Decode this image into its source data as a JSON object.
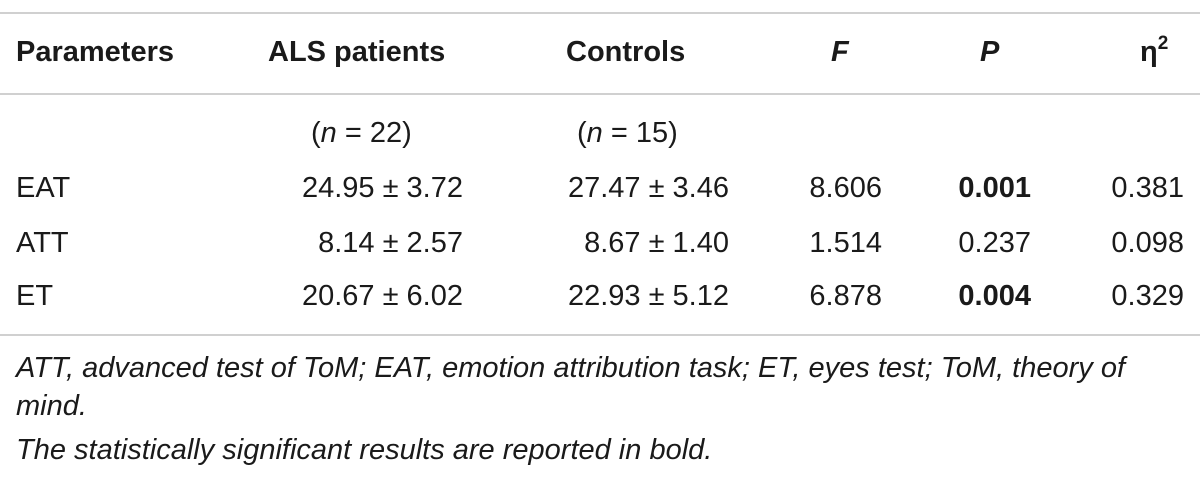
{
  "table": {
    "headers": {
      "parameters": "Parameters",
      "als": "ALS patients",
      "controls": "Controls",
      "f": "F",
      "p": "P",
      "eta_base": "η",
      "eta_sup": "2"
    },
    "n_row": {
      "als_n": "(n = 22)",
      "controls_n": "(n = 15)"
    },
    "rows": [
      {
        "param": "EAT",
        "als": "24.95 ± 3.72",
        "controls": "27.47 ± 3.46",
        "f": "8.606",
        "p": "0.001",
        "eta": "0.381",
        "p_bold": true
      },
      {
        "param": "ATT",
        "als": "8.14 ± 2.57",
        "controls": "8.67 ± 1.40",
        "f": "1.514",
        "p": "0.237",
        "eta": "0.098",
        "p_bold": false
      },
      {
        "param": "ET",
        "als": "20.67 ± 6.02",
        "controls": "22.93 ± 5.12",
        "f": "6.878",
        "p": "0.004",
        "eta": "0.329",
        "p_bold": true
      }
    ]
  },
  "footnotes": {
    "abbreviations": "ATT, advanced test of ToM; EAT, emotion attribution task; ET, eyes test; ToM, theory of mind.",
    "significance": "The statistically significant results are reported in bold."
  }
}
